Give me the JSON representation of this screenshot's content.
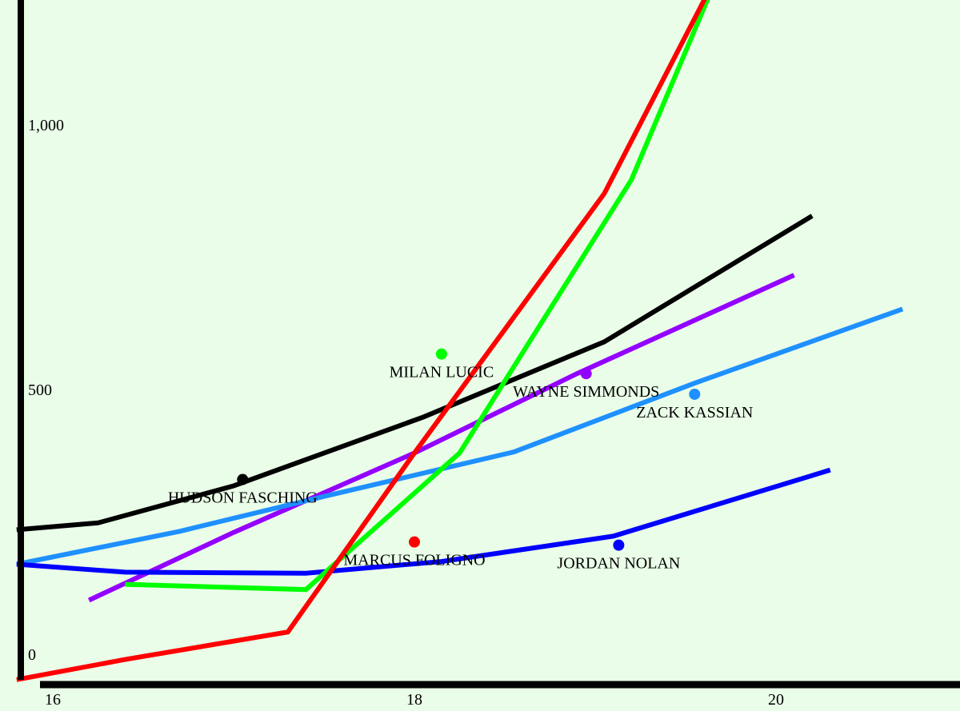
{
  "chart_data": {
    "type": "line",
    "title": "",
    "xlabel": "",
    "ylabel": "",
    "xlim": [
      15.9,
      21.5
    ],
    "ylim": [
      -50,
      1280
    ],
    "x_ticks": [
      16,
      18,
      20
    ],
    "x_tick_labels": [
      "16",
      "18",
      "20"
    ],
    "y_ticks": [
      0,
      500,
      1000
    ],
    "y_tick_labels": [
      "0",
      "500",
      "1,000"
    ],
    "grid": false,
    "series": [
      {
        "color": "#000000",
        "x": [
          15.8,
          16.25,
          17,
          18.05,
          19.05,
          20.2
        ],
        "y": [
          235,
          248,
          318,
          448,
          590,
          828
        ]
      },
      {
        "color": "#9400ff",
        "x": [
          16.2,
          17,
          18,
          18.9,
          20.1
        ],
        "y": [
          102,
          230,
          380,
          530,
          716
        ]
      },
      {
        "color": "#1e90ff",
        "x": [
          15.8,
          16.7,
          17.5,
          18.55,
          19.55,
          20.7
        ],
        "y": [
          170,
          232,
          298,
          382,
          512,
          652
        ]
      },
      {
        "color": "#0000ff",
        "x": [
          15.8,
          16.4,
          17.4,
          18.15,
          19.1,
          20.3
        ],
        "y": [
          170,
          155,
          153,
          175,
          223,
          348
        ]
      },
      {
        "color": "#00ff00",
        "x": [
          16.4,
          17.4,
          18.25,
          19.2,
          19.7
        ],
        "y": [
          132,
          122,
          380,
          896,
          1300
        ]
      },
      {
        "color": "#ff0000",
        "x": [
          15.8,
          16.4,
          17.3,
          18,
          19.05,
          19.7
        ],
        "y": [
          -48,
          -10,
          42,
          380,
          870,
          1300
        ]
      }
    ],
    "points": [
      {
        "label": "HUDSON FASCHING",
        "x": 17.05,
        "y": 330,
        "color": "#000000"
      },
      {
        "label": "MILAN LUCIC",
        "x": 18.15,
        "y": 567,
        "color": "#00ff00"
      },
      {
        "label": "WAYNE SIMMONDS",
        "x": 18.95,
        "y": 530,
        "color": "#9400ff"
      },
      {
        "label": "ZACK KASSIAN",
        "x": 19.55,
        "y": 491,
        "color": "#1e90ff"
      },
      {
        "label": "MARCUS FOLIGNO",
        "x": 18,
        "y": 212,
        "color": "#ff0000"
      },
      {
        "label": "JORDAN NOLAN",
        "x": 19.13,
        "y": 206,
        "color": "#0000ff"
      }
    ]
  }
}
